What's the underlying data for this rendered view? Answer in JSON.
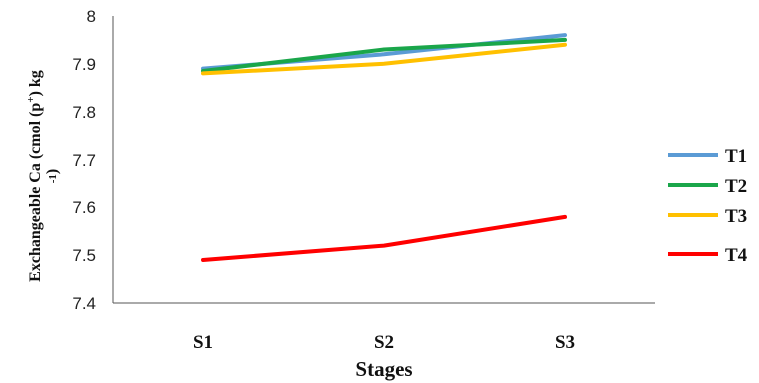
{
  "chart_data": {
    "type": "line",
    "categories": [
      "S1",
      "S2",
      "S3"
    ],
    "series": [
      {
        "name": "T1",
        "color": "#5b9bd5",
        "values": [
          7.89,
          7.92,
          7.96
        ]
      },
      {
        "name": "T2",
        "color": "#1aa64a",
        "values": [
          7.885,
          7.93,
          7.95
        ]
      },
      {
        "name": "T3",
        "color": "#ffc000",
        "values": [
          7.88,
          7.9,
          7.94
        ]
      },
      {
        "name": "T4",
        "color": "#ff0000",
        "values": [
          7.49,
          7.52,
          7.58
        ]
      }
    ],
    "xlabel": "Stages",
    "ylabel_main": "Exchangeable Ca (cmol (p",
    "ylabel_sup1": "+",
    "ylabel_mid": ") kg",
    "ylabel_line2": "-1",
    "ylabel_end": ")",
    "ylim": [
      7.4,
      8.0
    ],
    "yticks": [
      "7.4",
      "7.5",
      "7.6",
      "7.7",
      "7.8",
      "7.9",
      "8"
    ],
    "legend_position": "right",
    "grid": false
  }
}
